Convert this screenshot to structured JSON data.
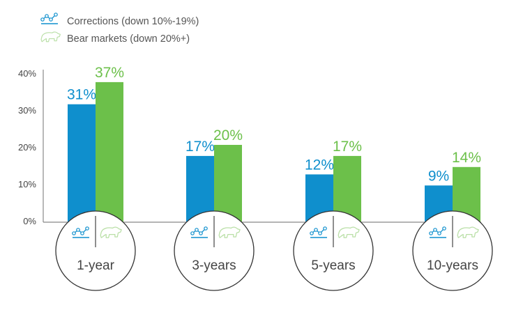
{
  "chart_data": {
    "type": "bar",
    "categories": [
      "1-year",
      "3-years",
      "5-years",
      "10-years"
    ],
    "series": [
      {
        "name": "Corrections (down 10%-19%)",
        "values": [
          31,
          17,
          12,
          9
        ],
        "labels": [
          "31%",
          "17%",
          "12%",
          "9%"
        ],
        "color": "#0f8fcd",
        "icon": "line-chart-icon"
      },
      {
        "name": "Bear markets (down 20%+)",
        "values": [
          37,
          20,
          17,
          14
        ],
        "labels": [
          "37%",
          "20%",
          "17%",
          "14%"
        ],
        "color": "#6cc04a",
        "icon": "bear-icon"
      }
    ],
    "ylim": [
      0,
      40
    ],
    "yticks": [
      "0%",
      "10%",
      "20%",
      "30%",
      "40%"
    ],
    "grid": false,
    "legend": "top-left"
  }
}
